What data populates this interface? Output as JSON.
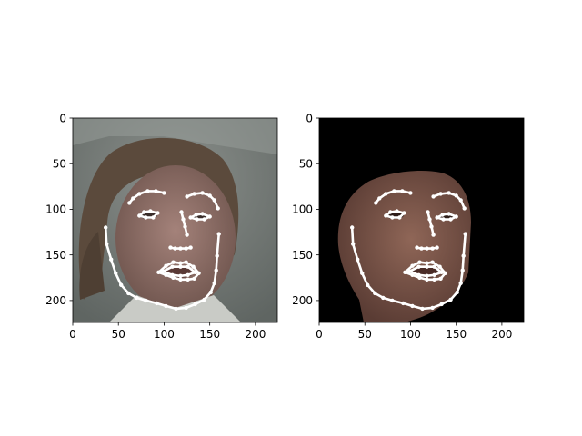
{
  "chart_data": [
    {
      "type": "image",
      "name": "original-photo",
      "title": "",
      "xlim": [
        0,
        224
      ],
      "ylim": [
        224,
        0
      ],
      "xticks": [
        0,
        50,
        100,
        150,
        200
      ],
      "yticks": [
        0,
        50,
        100,
        150,
        200
      ],
      "background": "photo",
      "colors": {
        "bg": "#6f7572",
        "skin": "#8a6d66",
        "hair": "#5b4a3c",
        "shirt": "#c9cbc6",
        "landmark": "#ffffff"
      },
      "landmarks": {
        "jaw": [
          [
            36,
            120
          ],
          [
            37,
            138
          ],
          [
            42,
            155
          ],
          [
            47,
            170
          ],
          [
            53,
            183
          ],
          [
            61,
            192
          ],
          [
            70,
            197
          ],
          [
            80,
            200
          ],
          [
            92,
            203
          ],
          [
            102,
            206
          ],
          [
            113,
            209
          ],
          [
            124,
            208
          ],
          [
            134,
            204
          ],
          [
            144,
            199
          ],
          [
            151,
            191
          ],
          [
            155,
            181
          ],
          [
            157,
            167
          ],
          [
            158,
            151
          ],
          [
            160,
            127
          ]
        ],
        "right_brow": [
          [
            62,
            93
          ],
          [
            66,
            88
          ],
          [
            73,
            83
          ],
          [
            82,
            80
          ],
          [
            91,
            80
          ],
          [
            100,
            82
          ]
        ],
        "left_brow": [
          [
            125,
            86
          ],
          [
            133,
            83
          ],
          [
            142,
            82
          ],
          [
            150,
            85
          ],
          [
            155,
            90
          ],
          [
            159,
            99
          ]
        ],
        "nose_bridge": [
          [
            119,
            103
          ],
          [
            121,
            111
          ],
          [
            123,
            119
          ],
          [
            125,
            128
          ]
        ],
        "nose_base": [
          [
            107,
            142
          ],
          [
            112,
            143
          ],
          [
            118,
            143
          ],
          [
            124,
            143
          ],
          [
            129,
            142
          ]
        ],
        "right_eye": [
          [
            73,
            107
          ],
          [
            78,
            103
          ],
          [
            85,
            102
          ],
          [
            93,
            104
          ],
          [
            88,
            109
          ],
          [
            80,
            109
          ]
        ],
        "left_eye": [
          [
            129,
            109
          ],
          [
            135,
            106
          ],
          [
            142,
            105
          ],
          [
            150,
            108
          ],
          [
            144,
            111
          ],
          [
            136,
            111
          ]
        ],
        "outer_lip": [
          [
            94,
            169
          ],
          [
            102,
            162
          ],
          [
            110,
            158
          ],
          [
            118,
            159
          ],
          [
            124,
            158
          ],
          [
            132,
            163
          ],
          [
            138,
            170
          ],
          [
            133,
            176
          ],
          [
            126,
            177
          ],
          [
            118,
            177
          ],
          [
            110,
            175
          ],
          [
            102,
            172
          ]
        ],
        "inner_lip": [
          [
            99,
            168
          ],
          [
            109,
            163
          ],
          [
            118,
            163
          ],
          [
            126,
            163
          ],
          [
            134,
            169
          ],
          [
            126,
            172
          ],
          [
            118,
            173
          ],
          [
            109,
            172
          ]
        ]
      }
    },
    {
      "type": "image",
      "name": "rendered-face",
      "title": "",
      "xlim": [
        0,
        224
      ],
      "ylim": [
        224,
        0
      ],
      "xticks": [
        0,
        50,
        100,
        150,
        200
      ],
      "yticks": [
        0,
        50,
        100,
        150,
        200
      ],
      "background": "#000000",
      "colors": {
        "bg": "#000000",
        "skin": "#7a5449",
        "landmark": "#ffffff"
      },
      "landmarks": {
        "jaw": [
          [
            36,
            120
          ],
          [
            37,
            138
          ],
          [
            42,
            155
          ],
          [
            47,
            170
          ],
          [
            53,
            183
          ],
          [
            61,
            192
          ],
          [
            70,
            197
          ],
          [
            80,
            200
          ],
          [
            92,
            203
          ],
          [
            102,
            206
          ],
          [
            113,
            209
          ],
          [
            124,
            208
          ],
          [
            134,
            204
          ],
          [
            144,
            199
          ],
          [
            151,
            191
          ],
          [
            155,
            181
          ],
          [
            157,
            167
          ],
          [
            158,
            151
          ],
          [
            160,
            127
          ]
        ],
        "right_brow": [
          [
            62,
            93
          ],
          [
            66,
            88
          ],
          [
            73,
            83
          ],
          [
            82,
            80
          ],
          [
            91,
            80
          ],
          [
            100,
            82
          ]
        ],
        "left_brow": [
          [
            125,
            86
          ],
          [
            133,
            83
          ],
          [
            142,
            82
          ],
          [
            150,
            85
          ],
          [
            155,
            90
          ],
          [
            159,
            99
          ]
        ],
        "nose_bridge": [
          [
            119,
            103
          ],
          [
            121,
            111
          ],
          [
            123,
            119
          ],
          [
            125,
            128
          ]
        ],
        "nose_base": [
          [
            107,
            142
          ],
          [
            112,
            143
          ],
          [
            118,
            143
          ],
          [
            124,
            143
          ],
          [
            129,
            142
          ]
        ],
        "right_eye": [
          [
            73,
            107
          ],
          [
            78,
            103
          ],
          [
            85,
            102
          ],
          [
            93,
            104
          ],
          [
            88,
            109
          ],
          [
            80,
            109
          ]
        ],
        "left_eye": [
          [
            129,
            109
          ],
          [
            135,
            106
          ],
          [
            142,
            105
          ],
          [
            150,
            108
          ],
          [
            144,
            111
          ],
          [
            136,
            111
          ]
        ],
        "outer_lip": [
          [
            94,
            169
          ],
          [
            102,
            162
          ],
          [
            110,
            158
          ],
          [
            118,
            159
          ],
          [
            124,
            158
          ],
          [
            132,
            163
          ],
          [
            138,
            170
          ],
          [
            133,
            176
          ],
          [
            126,
            177
          ],
          [
            118,
            177
          ],
          [
            110,
            175
          ],
          [
            102,
            172
          ]
        ],
        "inner_lip": [
          [
            99,
            168
          ],
          [
            109,
            163
          ],
          [
            118,
            163
          ],
          [
            126,
            163
          ],
          [
            134,
            169
          ],
          [
            126,
            172
          ],
          [
            118,
            173
          ],
          [
            109,
            172
          ]
        ]
      }
    }
  ]
}
